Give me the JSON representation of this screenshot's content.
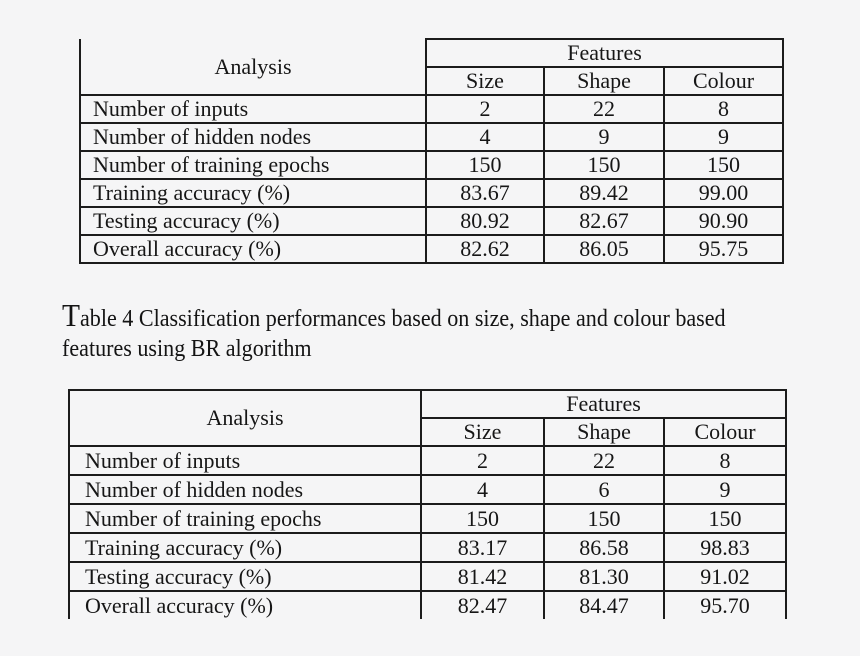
{
  "page": {
    "background_color": "#f5f5f6",
    "border_color": "#1c1c1c",
    "text_color": "#161616"
  },
  "caption": {
    "line1": "Table 4 Classification performances based on size, shape and colour based",
    "line2": "features using BR algorithm"
  },
  "tables": [
    {
      "header": {
        "analysis": "Analysis",
        "features": "Features",
        "columns": [
          "Size",
          "Shape",
          "Colour"
        ]
      },
      "rows": [
        {
          "label": "Number of inputs",
          "values": [
            "2",
            "22",
            "8"
          ]
        },
        {
          "label": "Number of hidden nodes",
          "values": [
            "4",
            "9",
            "9"
          ]
        },
        {
          "label": "Number of training epochs",
          "values": [
            "150",
            "150",
            "150"
          ]
        },
        {
          "label": "Training accuracy (%)",
          "values": [
            "83.67",
            "89.42",
            "99.00"
          ]
        },
        {
          "label": "Testing accuracy (%)",
          "values": [
            "80.92",
            "82.67",
            "90.90"
          ]
        },
        {
          "label": "Overall accuracy (%)",
          "values": [
            "82.62",
            "86.05",
            "95.75"
          ]
        }
      ]
    },
    {
      "header": {
        "analysis": "Analysis",
        "features": "Features",
        "columns": [
          "Size",
          "Shape",
          "Colour"
        ]
      },
      "rows": [
        {
          "label": "Number of inputs",
          "values": [
            "2",
            "22",
            "8"
          ]
        },
        {
          "label": "Number of hidden nodes",
          "values": [
            "4",
            "6",
            "9"
          ]
        },
        {
          "label": "Number of training epochs",
          "values": [
            "150",
            "150",
            "150"
          ]
        },
        {
          "label": "Training accuracy (%)",
          "values": [
            "83.17",
            "86.58",
            "98.83"
          ]
        },
        {
          "label": "Testing accuracy (%)",
          "values": [
            "81.42",
            "81.30",
            "91.02"
          ]
        },
        {
          "label": "Overall accuracy (%)",
          "values": [
            "82.47",
            "84.47",
            "95.70"
          ]
        }
      ]
    }
  ]
}
